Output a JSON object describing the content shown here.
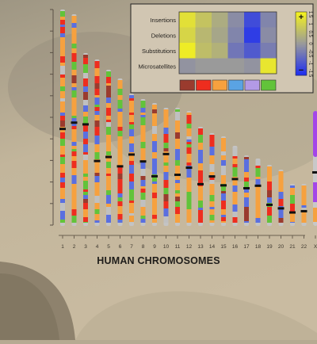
{
  "figure": {
    "title": "HUMAN CHROMOSOMES",
    "chromosome_labels": [
      "1",
      "2",
      "3",
      "4",
      "5",
      "6",
      "7",
      "8",
      "9",
      "10",
      "11",
      "12",
      "13",
      "14",
      "15",
      "16",
      "17",
      "18",
      "19",
      "20",
      "21",
      "22",
      "X"
    ]
  },
  "legend": {
    "row_labels": [
      "Insertions",
      "Deletions",
      "Substitutions",
      "Microsatellites"
    ],
    "scale_ticks": [
      "1.5",
      "1",
      "0.5",
      "0",
      "-0.5",
      "-1",
      "-1.5"
    ],
    "plus_symbol": "+",
    "minus_symbol": "−",
    "heatmap_values": [
      [
        1.2,
        0.7,
        0.3,
        -0.2,
        -1.1,
        -0.3
      ],
      [
        1.0,
        0.5,
        0.2,
        -0.3,
        -1.3,
        -0.2
      ],
      [
        1.4,
        0.6,
        0.4,
        -0.5,
        -0.9,
        -0.4
      ],
      [
        -0.1,
        0.0,
        0.0,
        0.0,
        -0.1,
        1.3
      ]
    ],
    "category_colors": [
      "#9a3b2e",
      "#ee2d1e",
      "#f6a13f",
      "#5aa3e3",
      "#b39ae6",
      "#62c33a"
    ],
    "scale_colors": {
      "high": "#f4f21e",
      "mid": "#9a9a9a",
      "low": "#1f2ff0"
    }
  },
  "colors": {
    "band_palette": [
      "#f6a13f",
      "#ee2d1e",
      "#62c33a",
      "#5a6fe0",
      "#9a3b2e",
      "#c0c0c0"
    ],
    "highlight": "#a346e8",
    "centromere": "#111111"
  }
}
